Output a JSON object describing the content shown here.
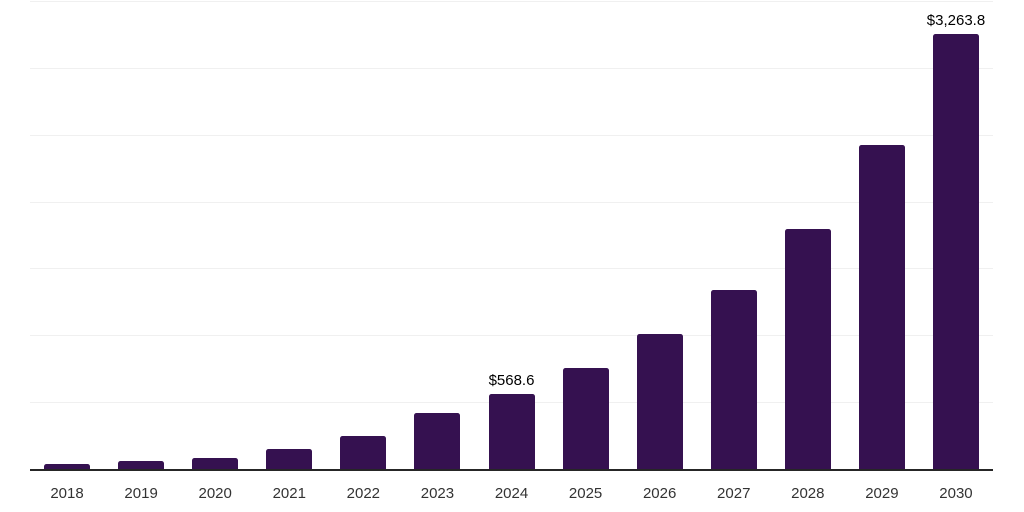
{
  "chart_data": {
    "type": "bar",
    "title": "",
    "xlabel": "",
    "ylabel": "",
    "categories": [
      "2018",
      "2019",
      "2020",
      "2021",
      "2022",
      "2023",
      "2024",
      "2025",
      "2026",
      "2027",
      "2028",
      "2029",
      "2030"
    ],
    "values": [
      45,
      65,
      92,
      155,
      255,
      428,
      568.6,
      760,
      1015,
      1350,
      1805,
      2430,
      3263.8
    ],
    "point_labels": [
      "",
      "",
      "",
      "",
      "",
      "",
      "$568.6",
      "",
      "",
      "",
      "",
      "",
      "$3,263.8"
    ],
    "ylim": [
      0,
      3500
    ],
    "grid_step": 500,
    "grid": true,
    "legend": false,
    "y_axis_labels_visible": false,
    "colors": {
      "bar": "#351150",
      "gridline": "#f0f0f0",
      "axis_line": "#262626",
      "tick_label": "#333333",
      "value_label": "#000000",
      "background": "#ffffff"
    }
  }
}
